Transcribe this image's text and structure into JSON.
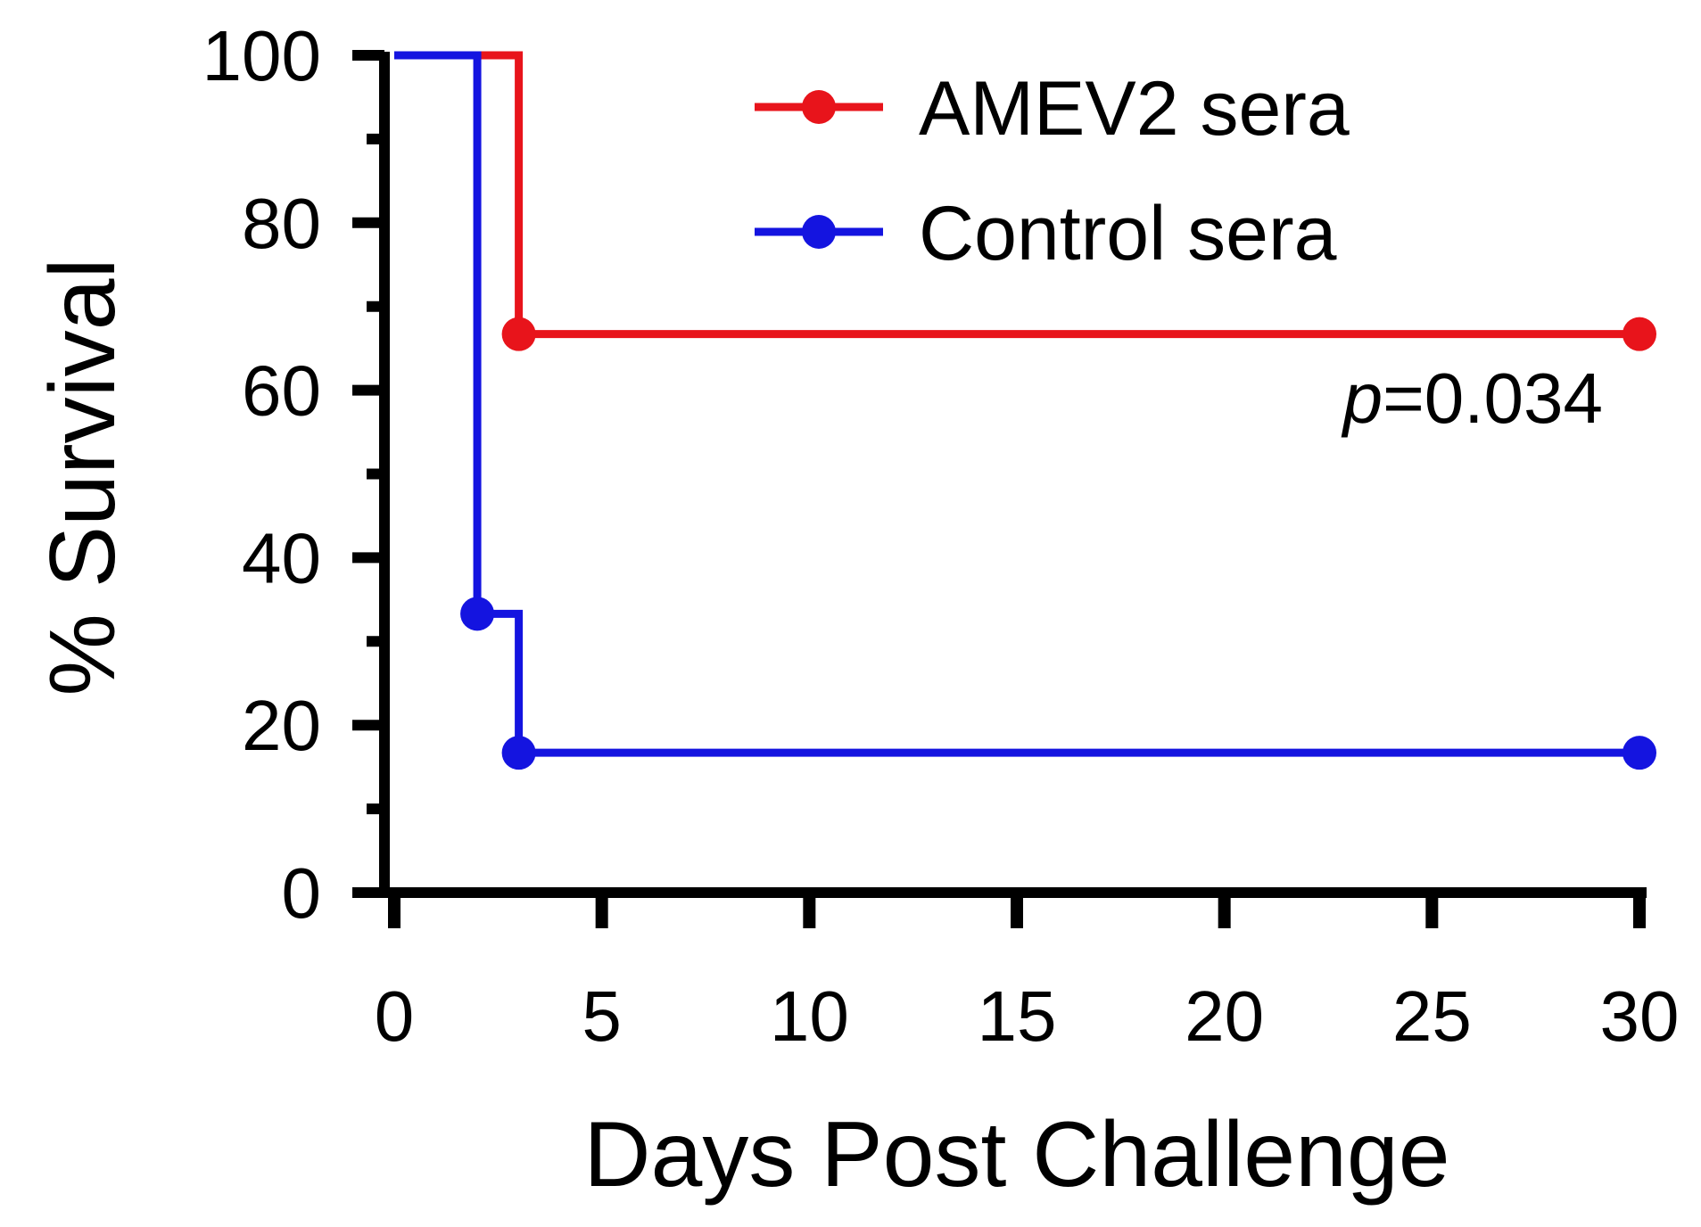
{
  "chart_data": {
    "type": "line",
    "subtype": "kaplan-meier-step",
    "title": "",
    "xlabel": "Days Post Challenge",
    "ylabel": "% Survival",
    "xlim": [
      0,
      30
    ],
    "ylim": [
      0,
      100
    ],
    "x_ticks": [
      0,
      5,
      10,
      15,
      20,
      25,
      30
    ],
    "y_ticks": [
      0,
      20,
      40,
      60,
      80,
      100
    ],
    "grid": false,
    "legend_position": "top-right",
    "series": [
      {
        "name": "AMEV2 sera",
        "color": "#e8141b",
        "steps": [
          {
            "x": 0,
            "y": 100
          },
          {
            "x": 3,
            "y": 66.7
          },
          {
            "x": 30,
            "y": 66.7
          }
        ],
        "markers": [
          {
            "x": 3,
            "y": 66.7
          },
          {
            "x": 30,
            "y": 66.7
          }
        ]
      },
      {
        "name": "Control sera",
        "color": "#1414e0",
        "steps": [
          {
            "x": 0,
            "y": 100
          },
          {
            "x": 2,
            "y": 33.3
          },
          {
            "x": 3,
            "y": 16.7
          },
          {
            "x": 30,
            "y": 16.7
          }
        ],
        "markers": [
          {
            "x": 2,
            "y": 33.3
          },
          {
            "x": 3,
            "y": 16.7
          },
          {
            "x": 30,
            "y": 16.7
          }
        ]
      }
    ],
    "annotations": [
      {
        "text_italic": "p",
        "text": "=0.034"
      }
    ]
  }
}
